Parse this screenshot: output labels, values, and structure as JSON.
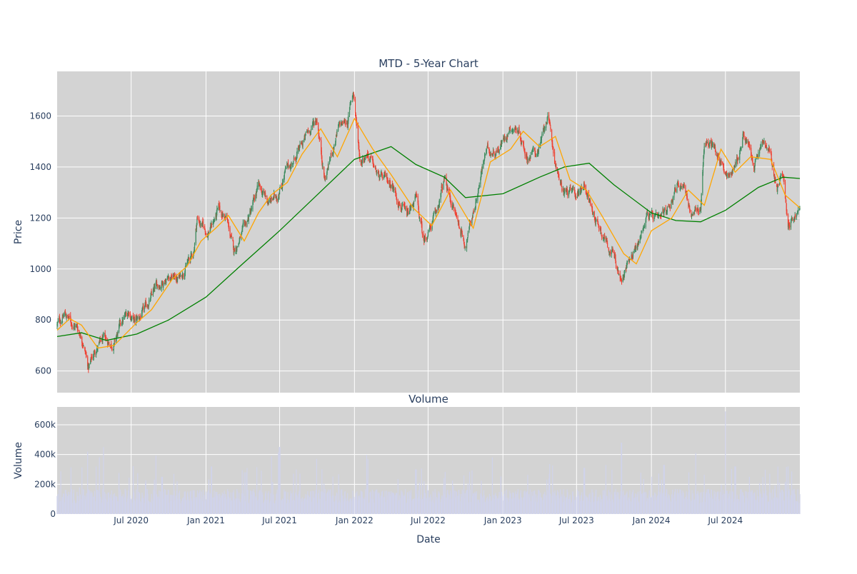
{
  "chart_data": [
    {
      "type": "candlestick",
      "title": "MTD - 5-Year Chart",
      "ylabel": "Price",
      "ylim": [
        515,
        1775
      ],
      "yticks": [
        600,
        800,
        1000,
        1200,
        1400,
        1600
      ],
      "xlim": [
        "2020-01-01",
        "2024-12-31"
      ],
      "colors": {
        "plot_bg": "#d3d3d3",
        "up": "#3d8b5e",
        "down": "#ef4132",
        "ma_short": "#ffa500",
        "ma_long": "#008000"
      },
      "price_path": [
        {
          "date": "2020-01-01",
          "close": 780
        },
        {
          "date": "2020-01-20",
          "close": 825
        },
        {
          "date": "2020-02-05",
          "close": 790
        },
        {
          "date": "2020-02-20",
          "close": 770
        },
        {
          "date": "2020-03-05",
          "close": 720
        },
        {
          "date": "2020-03-18",
          "close": 610
        },
        {
          "date": "2020-04-05",
          "close": 690
        },
        {
          "date": "2020-04-25",
          "close": 720
        },
        {
          "date": "2020-05-20",
          "close": 705
        },
        {
          "date": "2020-06-05",
          "close": 780
        },
        {
          "date": "2020-06-25",
          "close": 835
        },
        {
          "date": "2020-07-10",
          "close": 790
        },
        {
          "date": "2020-08-01",
          "close": 830
        },
        {
          "date": "2020-09-01",
          "close": 930
        },
        {
          "date": "2020-10-01",
          "close": 975
        },
        {
          "date": "2020-10-25",
          "close": 960
        },
        {
          "date": "2020-11-15",
          "close": 1020
        },
        {
          "date": "2020-12-01",
          "close": 1060
        },
        {
          "date": "2020-12-10",
          "close": 1200
        },
        {
          "date": "2021-01-05",
          "close": 1140
        },
        {
          "date": "2021-02-01",
          "close": 1230
        },
        {
          "date": "2021-02-20",
          "close": 1200
        },
        {
          "date": "2021-03-10",
          "close": 1070
        },
        {
          "date": "2021-04-01",
          "close": 1140
        },
        {
          "date": "2021-04-20",
          "close": 1220
        },
        {
          "date": "2021-05-10",
          "close": 1320
        },
        {
          "date": "2021-06-05",
          "close": 1260
        },
        {
          "date": "2021-06-25",
          "close": 1290
        },
        {
          "date": "2021-07-15",
          "close": 1380
        },
        {
          "date": "2021-08-10",
          "close": 1440
        },
        {
          "date": "2021-09-10",
          "close": 1540
        },
        {
          "date": "2021-10-01",
          "close": 1590
        },
        {
          "date": "2021-10-20",
          "close": 1350
        },
        {
          "date": "2021-11-05",
          "close": 1450
        },
        {
          "date": "2021-11-25",
          "close": 1560
        },
        {
          "date": "2021-12-15",
          "close": 1580
        },
        {
          "date": "2021-12-29",
          "close": 1700
        },
        {
          "date": "2022-01-15",
          "close": 1420
        },
        {
          "date": "2022-02-01",
          "close": 1460
        },
        {
          "date": "2022-03-01",
          "close": 1360
        },
        {
          "date": "2022-04-01",
          "close": 1340
        },
        {
          "date": "2022-05-10",
          "close": 1200
        },
        {
          "date": "2022-06-01",
          "close": 1280
        },
        {
          "date": "2022-06-20",
          "close": 1110
        },
        {
          "date": "2022-07-20",
          "close": 1210
        },
        {
          "date": "2022-08-10",
          "close": 1350
        },
        {
          "date": "2022-09-01",
          "close": 1240
        },
        {
          "date": "2022-10-01",
          "close": 1095
        },
        {
          "date": "2022-10-25",
          "close": 1260
        },
        {
          "date": "2022-11-20",
          "close": 1460
        },
        {
          "date": "2022-12-20",
          "close": 1470
        },
        {
          "date": "2023-01-20",
          "close": 1560
        },
        {
          "date": "2023-02-10",
          "close": 1540
        },
        {
          "date": "2023-03-01",
          "close": 1440
        },
        {
          "date": "2023-04-01",
          "close": 1470
        },
        {
          "date": "2023-04-20",
          "close": 1600
        },
        {
          "date": "2023-05-10",
          "close": 1420
        },
        {
          "date": "2023-05-25",
          "close": 1310
        },
        {
          "date": "2023-07-01",
          "close": 1290
        },
        {
          "date": "2023-07-20",
          "close": 1340
        },
        {
          "date": "2023-08-10",
          "close": 1220
        },
        {
          "date": "2023-09-01",
          "close": 1150
        },
        {
          "date": "2023-10-01",
          "close": 1050
        },
        {
          "date": "2023-10-20",
          "close": 940
        },
        {
          "date": "2023-11-10",
          "close": 1060
        },
        {
          "date": "2023-12-01",
          "close": 1100
        },
        {
          "date": "2023-12-20",
          "close": 1220
        },
        {
          "date": "2024-01-20",
          "close": 1180
        },
        {
          "date": "2024-02-10",
          "close": 1240
        },
        {
          "date": "2024-03-01",
          "close": 1320
        },
        {
          "date": "2024-03-20",
          "close": 1340
        },
        {
          "date": "2024-04-10",
          "close": 1200
        },
        {
          "date": "2024-05-01",
          "close": 1240
        },
        {
          "date": "2024-05-10",
          "close": 1500
        },
        {
          "date": "2024-06-01",
          "close": 1480
        },
        {
          "date": "2024-06-20",
          "close": 1420
        },
        {
          "date": "2024-07-10",
          "close": 1360
        },
        {
          "date": "2024-08-01",
          "close": 1440
        },
        {
          "date": "2024-08-15",
          "close": 1530
        },
        {
          "date": "2024-09-10",
          "close": 1400
        },
        {
          "date": "2024-10-01",
          "close": 1500
        },
        {
          "date": "2024-10-20",
          "close": 1440
        },
        {
          "date": "2024-11-05",
          "close": 1310
        },
        {
          "date": "2024-11-20",
          "close": 1380
        },
        {
          "date": "2024-12-01",
          "close": 1180
        },
        {
          "date": "2024-12-31",
          "close": 1230
        }
      ],
      "ma_short": [
        {
          "date": "2020-01-01",
          "value": 760
        },
        {
          "date": "2020-02-01",
          "value": 805
        },
        {
          "date": "2020-03-01",
          "value": 780
        },
        {
          "date": "2020-04-10",
          "value": 690
        },
        {
          "date": "2020-05-20",
          "value": 700
        },
        {
          "date": "2020-07-15",
          "value": 790
        },
        {
          "date": "2020-08-20",
          "value": 840
        },
        {
          "date": "2020-10-10",
          "value": 960
        },
        {
          "date": "2020-11-15",
          "value": 1010
        },
        {
          "date": "2020-12-20",
          "value": 1110
        },
        {
          "date": "2021-01-25",
          "value": 1160
        },
        {
          "date": "2021-02-25",
          "value": 1210
        },
        {
          "date": "2021-04-05",
          "value": 1110
        },
        {
          "date": "2021-05-10",
          "value": 1220
        },
        {
          "date": "2021-06-10",
          "value": 1290
        },
        {
          "date": "2021-07-20",
          "value": 1340
        },
        {
          "date": "2021-08-25",
          "value": 1450
        },
        {
          "date": "2021-10-10",
          "value": 1550
        },
        {
          "date": "2021-11-20",
          "value": 1440
        },
        {
          "date": "2022-01-01",
          "value": 1590
        },
        {
          "date": "2022-02-15",
          "value": 1470
        },
        {
          "date": "2022-04-01",
          "value": 1370
        },
        {
          "date": "2022-05-25",
          "value": 1240
        },
        {
          "date": "2022-07-10",
          "value": 1170
        },
        {
          "date": "2022-08-25",
          "value": 1310
        },
        {
          "date": "2022-10-20",
          "value": 1160
        },
        {
          "date": "2022-12-01",
          "value": 1420
        },
        {
          "date": "2023-01-20",
          "value": 1470
        },
        {
          "date": "2023-02-20",
          "value": 1540
        },
        {
          "date": "2023-04-01",
          "value": 1480
        },
        {
          "date": "2023-05-10",
          "value": 1520
        },
        {
          "date": "2023-06-15",
          "value": 1350
        },
        {
          "date": "2023-07-25",
          "value": 1310
        },
        {
          "date": "2023-09-01",
          "value": 1210
        },
        {
          "date": "2023-10-25",
          "value": 1060
        },
        {
          "date": "2023-11-25",
          "value": 1020
        },
        {
          "date": "2024-01-01",
          "value": 1150
        },
        {
          "date": "2024-02-20",
          "value": 1200
        },
        {
          "date": "2024-04-01",
          "value": 1310
        },
        {
          "date": "2024-05-10",
          "value": 1250
        },
        {
          "date": "2024-06-20",
          "value": 1470
        },
        {
          "date": "2024-07-25",
          "value": 1380
        },
        {
          "date": "2024-09-01",
          "value": 1440
        },
        {
          "date": "2024-10-20",
          "value": 1430
        },
        {
          "date": "2024-11-25",
          "value": 1290
        },
        {
          "date": "2024-12-31",
          "value": 1240
        }
      ],
      "ma_long": [
        {
          "date": "2020-01-01",
          "value": 735
        },
        {
          "date": "2020-03-01",
          "value": 750
        },
        {
          "date": "2020-05-01",
          "value": 720
        },
        {
          "date": "2020-07-15",
          "value": 745
        },
        {
          "date": "2020-10-01",
          "value": 800
        },
        {
          "date": "2021-01-01",
          "value": 890
        },
        {
          "date": "2021-04-01",
          "value": 1020
        },
        {
          "date": "2021-07-01",
          "value": 1150
        },
        {
          "date": "2021-10-01",
          "value": 1290
        },
        {
          "date": "2022-01-01",
          "value": 1430
        },
        {
          "date": "2022-04-01",
          "value": 1480
        },
        {
          "date": "2022-06-01",
          "value": 1410
        },
        {
          "date": "2022-08-10",
          "value": 1360
        },
        {
          "date": "2022-10-01",
          "value": 1280
        },
        {
          "date": "2023-01-01",
          "value": 1295
        },
        {
          "date": "2023-04-01",
          "value": 1360
        },
        {
          "date": "2023-06-01",
          "value": 1400
        },
        {
          "date": "2023-08-01",
          "value": 1415
        },
        {
          "date": "2023-10-01",
          "value": 1330
        },
        {
          "date": "2024-01-01",
          "value": 1220
        },
        {
          "date": "2024-03-01",
          "value": 1190
        },
        {
          "date": "2024-05-01",
          "value": 1185
        },
        {
          "date": "2024-07-01",
          "value": 1230
        },
        {
          "date": "2024-09-20",
          "value": 1320
        },
        {
          "date": "2024-11-20",
          "value": 1360
        },
        {
          "date": "2024-12-31",
          "value": 1355
        }
      ]
    },
    {
      "type": "bar",
      "title": "Volume",
      "ylabel": "Volume",
      "xlabel": "Date",
      "ylim": [
        0,
        720000
      ],
      "yticks": [
        0,
        200000,
        400000,
        600000
      ],
      "ytick_labels": [
        "0",
        "200k",
        "400k",
        "600k"
      ],
      "xticks": [
        "2020-07-01",
        "2021-01-01",
        "2021-07-01",
        "2022-01-01",
        "2022-07-01",
        "2023-01-01",
        "2023-07-01",
        "2024-01-01",
        "2024-07-01"
      ],
      "xtick_labels": [
        "Jul 2020",
        "Jan 2021",
        "Jul 2021",
        "Jan 2022",
        "Jul 2022",
        "Jan 2023",
        "Jul 2023",
        "Jan 2024",
        "Jul 2024"
      ],
      "colors": {
        "plot_bg": "#d3d3d3",
        "bar": "#d0d3ea"
      },
      "typical_volume": 130000,
      "spikes": [
        {
          "date": "2020-03-15",
          "value": 420000
        },
        {
          "date": "2020-04-05",
          "value": 320000
        },
        {
          "date": "2020-04-25",
          "value": 450000
        },
        {
          "date": "2020-09-15",
          "value": 250000
        },
        {
          "date": "2021-01-15",
          "value": 320000
        },
        {
          "date": "2021-04-10",
          "value": 280000
        },
        {
          "date": "2021-07-01",
          "value": 450000
        },
        {
          "date": "2022-06-01",
          "value": 300000
        },
        {
          "date": "2023-07-20",
          "value": 310000
        },
        {
          "date": "2023-09-10",
          "value": 330000
        },
        {
          "date": "2023-10-20",
          "value": 480000
        },
        {
          "date": "2024-02-01",
          "value": 330000
        },
        {
          "date": "2024-04-20",
          "value": 410000
        },
        {
          "date": "2024-06-30",
          "value": 690000
        },
        {
          "date": "2024-07-25",
          "value": 320000
        },
        {
          "date": "2024-12-01",
          "value": 320000
        }
      ]
    }
  ]
}
